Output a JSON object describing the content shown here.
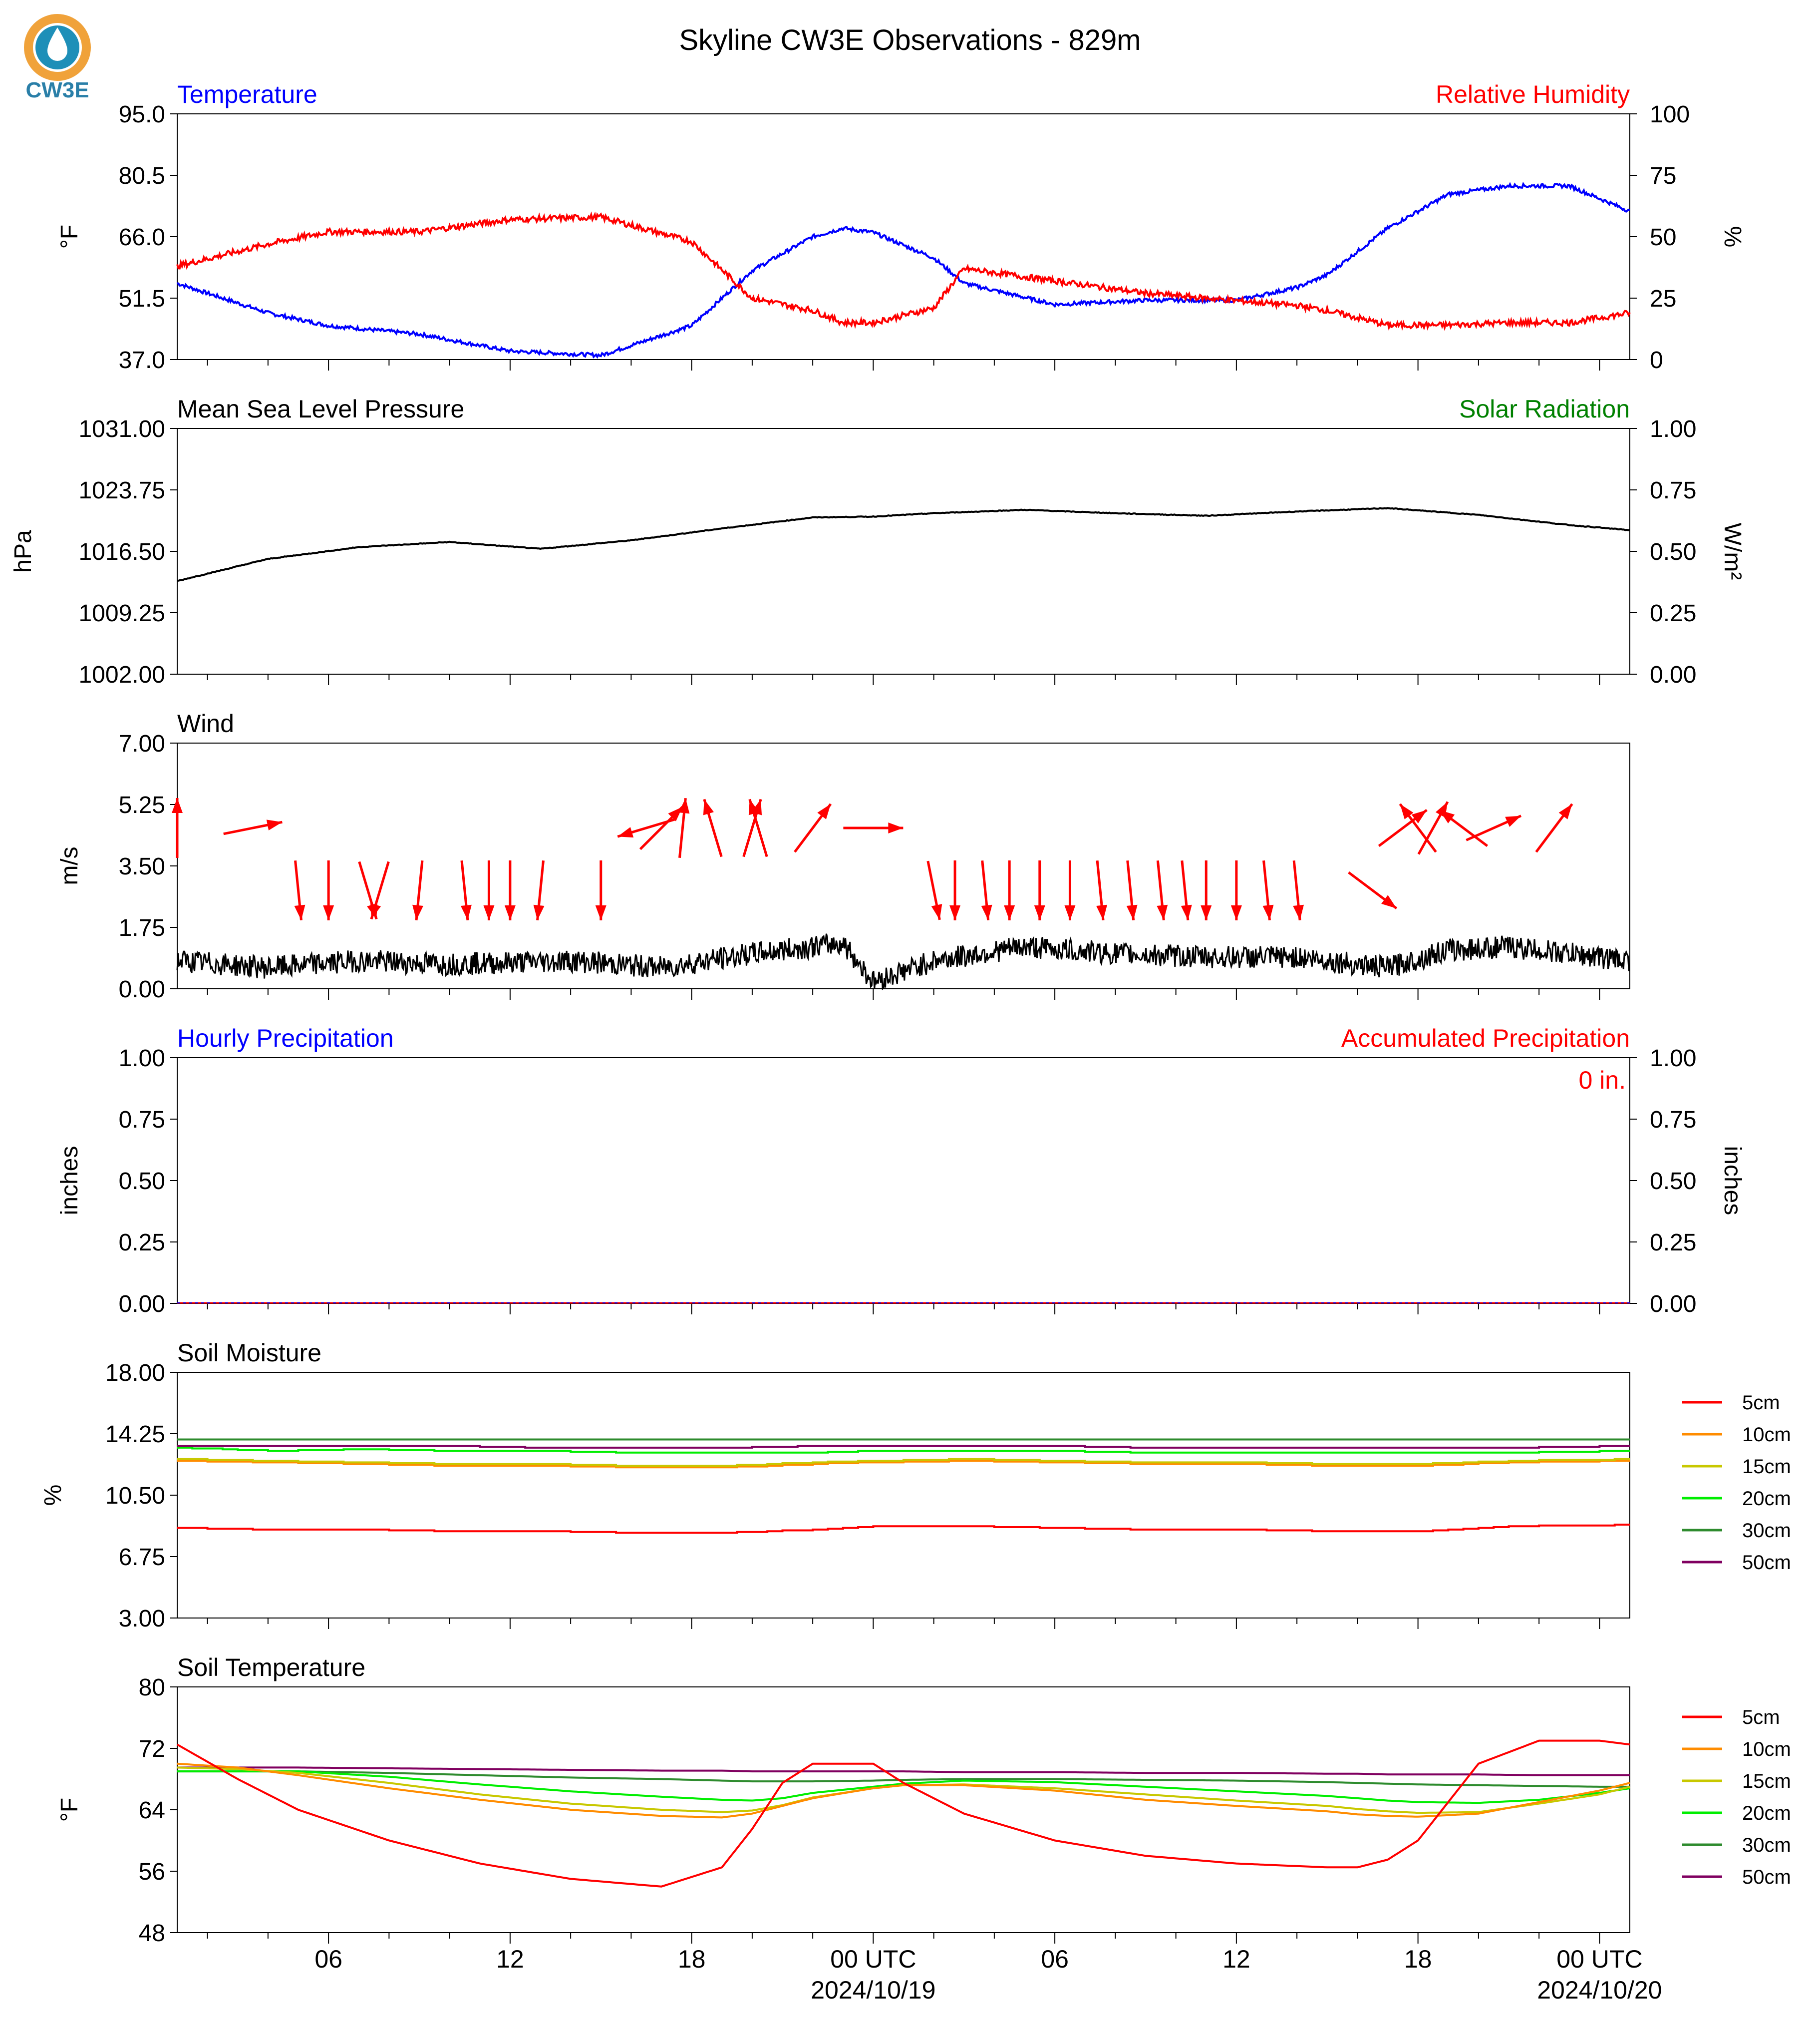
{
  "title": "Skyline CW3E Observations - 829m",
  "logo": {
    "text": "CW3E",
    "colors": {
      "ring": "#f0a23a",
      "drop": "#1e8fb8",
      "text": "#2a7fa8"
    }
  },
  "colors": {
    "blue": "#0000ff",
    "red": "#ff0000",
    "green": "#008000",
    "black": "#000000"
  },
  "x_axis": {
    "ticks": [
      "06",
      "12",
      "18",
      "00 UTC",
      "06",
      "12",
      "18",
      "00 UTC"
    ],
    "dates": [
      "2024/10/19",
      "2024/10/20"
    ],
    "range_hours": [
      -23,
      25
    ],
    "major_hours": [
      -18,
      -12,
      -6,
      0,
      6,
      12,
      18,
      24
    ]
  },
  "panels": [
    {
      "id": "temp_rh",
      "title_left": "Temperature",
      "title_left_color": "#0000ff",
      "title_right": "Relative Humidity",
      "title_right_color": "#ff0000",
      "ylabel_left": "°F",
      "ylabel_right": "%",
      "yticks_left": [
        "95.0",
        "80.5",
        "66.0",
        "51.5",
        "37.0"
      ],
      "yticks_right": [
        "100",
        "75",
        "50",
        "25",
        "0"
      ]
    },
    {
      "id": "pressure",
      "title_left": "Mean Sea Level Pressure",
      "title_left_color": "#000000",
      "title_right": "Solar Radiation",
      "title_right_color": "#008000",
      "ylabel_left": "hPa",
      "ylabel_right": "W/m²",
      "yticks_left": [
        "1031.00",
        "1023.75",
        "1016.50",
        "1009.25",
        "1002.00"
      ],
      "yticks_right": [
        "1.00",
        "0.75",
        "0.50",
        "0.25",
        "0.00"
      ]
    },
    {
      "id": "wind",
      "title_left": "Wind",
      "title_left_color": "#000000",
      "title_right": "",
      "title_right_color": "#000000",
      "ylabel_left": "m/s",
      "ylabel_right": "",
      "yticks_left": [
        "7.00",
        "5.25",
        "3.50",
        "1.75",
        "0.00"
      ],
      "yticks_right": []
    },
    {
      "id": "precip",
      "title_left": "Hourly Precipitation",
      "title_left_color": "#0000ff",
      "title_right": "Accumulated Precipitation",
      "title_right_color": "#ff0000",
      "ylabel_left": "inches",
      "ylabel_right": "inches",
      "yticks_left": [
        "1.00",
        "0.75",
        "0.50",
        "0.25",
        "0.00"
      ],
      "yticks_right": [
        "1.00",
        "0.75",
        "0.50",
        "0.25",
        "0.00"
      ],
      "annotation": "0 in."
    },
    {
      "id": "soil_moisture",
      "title_left": "Soil Moisture",
      "title_left_color": "#000000",
      "title_right": "",
      "title_right_color": "#000000",
      "ylabel_left": "%",
      "ylabel_right": "",
      "yticks_left": [
        "18.00",
        "14.25",
        "10.50",
        "6.75",
        "3.00"
      ],
      "yticks_right": [],
      "legend": [
        {
          "name": "5cm",
          "color": "#ff0000"
        },
        {
          "name": "10cm",
          "color": "#ff8c00"
        },
        {
          "name": "15cm",
          "color": "#c8c800"
        },
        {
          "name": "20cm",
          "color": "#00ee00"
        },
        {
          "name": "30cm",
          "color": "#2e8b2e"
        },
        {
          "name": "50cm",
          "color": "#800060"
        }
      ]
    },
    {
      "id": "soil_temp",
      "title_left": "Soil Temperature",
      "title_left_color": "#000000",
      "title_right": "",
      "title_right_color": "#000000",
      "ylabel_left": "°F",
      "ylabel_right": "",
      "yticks_left": [
        "80",
        "72",
        "64",
        "56",
        "48"
      ],
      "yticks_right": [],
      "legend": [
        {
          "name": "5cm",
          "color": "#ff0000"
        },
        {
          "name": "10cm",
          "color": "#ff8c00"
        },
        {
          "name": "15cm",
          "color": "#c8c800"
        },
        {
          "name": "20cm",
          "color": "#00ee00"
        },
        {
          "name": "30cm",
          "color": "#2e8b2e"
        },
        {
          "name": "50cm",
          "color": "#800060"
        }
      ]
    }
  ],
  "chart_data": [
    {
      "type": "line",
      "title": "Temperature / Relative Humidity",
      "x": [
        -23,
        -20,
        -18,
        -15,
        -12,
        -9,
        -6,
        -4,
        -2,
        -1,
        0,
        2,
        3,
        6,
        9,
        12,
        14,
        15,
        17,
        19,
        21,
        23,
        25
      ],
      "series": [
        {
          "name": "Temperature",
          "axis": "left",
          "color": "#0000ff",
          "values": [
            55,
            48,
            45,
            43,
            39,
            38,
            45,
            58,
            66,
            68,
            67,
            61,
            55,
            50,
            51,
            51,
            54,
            57,
            68,
            76,
            78,
            78,
            72
          ]
        },
        {
          "name": "Relative Humidity",
          "axis": "right",
          "color": "#ff0000",
          "values": [
            38,
            47,
            52,
            52,
            57,
            58,
            48,
            25,
            20,
            15,
            15,
            21,
            37,
            32,
            27,
            24,
            22,
            20,
            14,
            14,
            15,
            15,
            19
          ]
        }
      ],
      "ylim_left": [
        37,
        95
      ],
      "ylim_right": [
        0,
        100
      ]
    },
    {
      "type": "line",
      "title": "Mean Sea Level Pressure",
      "x": [
        -23,
        -20,
        -17,
        -14,
        -11,
        -8,
        -5,
        -2,
        0,
        2,
        5,
        8,
        11,
        14,
        17,
        20,
        23,
        25
      ],
      "series": [
        {
          "name": "Mean Sea Level Pressure",
          "color": "#000000",
          "values": [
            1013.0,
            1015.6,
            1017.0,
            1017.6,
            1016.8,
            1017.8,
            1019.2,
            1020.5,
            1020.6,
            1021.0,
            1021.4,
            1021.0,
            1020.7,
            1021.2,
            1021.6,
            1020.8,
            1019.6,
            1019.0
          ]
        }
      ],
      "ylim": [
        1002,
        1031
      ]
    },
    {
      "type": "line",
      "title": "Wind",
      "x": [
        -23,
        -20,
        -17,
        -14,
        -10,
        -7,
        -4,
        -2,
        -1,
        0,
        2,
        5,
        8,
        11,
        14,
        17,
        19,
        21,
        23,
        25
      ],
      "series": [
        {
          "name": "Wind speed",
          "color": "#000000",
          "values": [
            0.8,
            0.6,
            0.8,
            0.7,
            0.8,
            0.6,
            1.0,
            1.2,
            1.3,
            0.2,
            0.8,
            1.2,
            1.0,
            0.9,
            0.9,
            0.6,
            1.1,
            1.2,
            1.0,
            0.8
          ]
        }
      ],
      "ylim": [
        0,
        7
      ],
      "arrows": [
        {
          "x": -23,
          "u": 0.0,
          "v": 1.0
        },
        {
          "x": -20.5,
          "u": 1.0,
          "v": 0.2
        },
        {
          "x": -19,
          "u": 0.1,
          "v": -1.0
        },
        {
          "x": -18,
          "u": 0.0,
          "v": -1.0
        },
        {
          "x": -16.7,
          "u": 0.3,
          "v": -1.0
        },
        {
          "x": -16.3,
          "u": -0.3,
          "v": -1.0
        },
        {
          "x": -15,
          "u": -0.1,
          "v": -1.0
        },
        {
          "x": -13.5,
          "u": 0.1,
          "v": -1.0
        },
        {
          "x": -12.7,
          "u": 0.0,
          "v": -1.0
        },
        {
          "x": -12,
          "u": 0.0,
          "v": -1.0
        },
        {
          "x": -11,
          "u": -0.1,
          "v": -1.0
        },
        {
          "x": -9,
          "u": 0.0,
          "v": -1.0
        },
        {
          "x": -7.5,
          "u": -1.0,
          "v": -0.3
        },
        {
          "x": -7,
          "u": 0.7,
          "v": 0.7
        },
        {
          "x": -6.3,
          "u": 0.1,
          "v": 1.0
        },
        {
          "x": -5.3,
          "u": -0.3,
          "v": 1.0
        },
        {
          "x": -4,
          "u": 0.3,
          "v": 1.0
        },
        {
          "x": -3.8,
          "u": -0.3,
          "v": 1.0
        },
        {
          "x": -2,
          "u": 0.6,
          "v": 0.8
        },
        {
          "x": 0,
          "u": 1.0,
          "v": 0.0
        },
        {
          "x": 2,
          "u": 0.2,
          "v": -1.0
        },
        {
          "x": 2.7,
          "u": 0.0,
          "v": -1.0
        },
        {
          "x": 3.7,
          "u": 0.1,
          "v": -1.0
        },
        {
          "x": 4.5,
          "u": 0.0,
          "v": -1.0
        },
        {
          "x": 5.5,
          "u": 0.0,
          "v": -1.0
        },
        {
          "x": 6.5,
          "u": 0.0,
          "v": -1.0
        },
        {
          "x": 7.5,
          "u": 0.1,
          "v": -1.0
        },
        {
          "x": 8.5,
          "u": 0.1,
          "v": -1.0
        },
        {
          "x": 9.5,
          "u": 0.1,
          "v": -1.0
        },
        {
          "x": 10.3,
          "u": 0.1,
          "v": -1.0
        },
        {
          "x": 11,
          "u": 0.0,
          "v": -1.0
        },
        {
          "x": 12,
          "u": 0.0,
          "v": -1.0
        },
        {
          "x": 13,
          "u": 0.1,
          "v": -1.0
        },
        {
          "x": 14,
          "u": 0.1,
          "v": -1.0
        },
        {
          "x": 16.5,
          "u": 0.8,
          "v": -0.6
        },
        {
          "x": 17.5,
          "u": 0.8,
          "v": 0.6
        },
        {
          "x": 18,
          "u": -0.6,
          "v": 0.8
        },
        {
          "x": 18.5,
          "u": 0.5,
          "v": 0.9
        },
        {
          "x": 19.5,
          "u": -0.8,
          "v": 0.6
        },
        {
          "x": 20.5,
          "u": 0.9,
          "v": 0.4
        },
        {
          "x": 22.5,
          "u": 0.6,
          "v": 0.8
        }
      ]
    },
    {
      "type": "line",
      "title": "Precipitation",
      "x": [
        -23,
        25
      ],
      "series": [
        {
          "name": "Hourly Precipitation",
          "axis": "left",
          "color": "#0000ff",
          "values": [
            0,
            0
          ]
        },
        {
          "name": "Accumulated Precipitation",
          "axis": "right",
          "color": "#ff0000",
          "values": [
            0,
            0
          ]
        }
      ],
      "ylim": [
        0,
        1
      ]
    },
    {
      "type": "line",
      "title": "Soil Moisture",
      "x": [
        -23,
        -20,
        -17,
        -14,
        -11,
        -8,
        -5,
        -2,
        0,
        3,
        6,
        9,
        12,
        15,
        18,
        21,
        25
      ],
      "series": [
        {
          "name": "5cm",
          "color": "#ff0000",
          "values": [
            8.5,
            8.4,
            8.4,
            8.3,
            8.3,
            8.2,
            8.2,
            8.4,
            8.6,
            8.6,
            8.5,
            8.4,
            8.4,
            8.3,
            8.3,
            8.6,
            8.7
          ]
        },
        {
          "name": "10cm",
          "color": "#ff8c00",
          "values": [
            12.6,
            12.5,
            12.4,
            12.3,
            12.3,
            12.2,
            12.2,
            12.4,
            12.5,
            12.6,
            12.5,
            12.4,
            12.4,
            12.3,
            12.3,
            12.5,
            12.6
          ]
        },
        {
          "name": "15cm",
          "color": "#c8c800",
          "values": [
            12.7,
            12.6,
            12.5,
            12.4,
            12.4,
            12.3,
            12.3,
            12.5,
            12.6,
            12.7,
            12.6,
            12.5,
            12.5,
            12.4,
            12.4,
            12.6,
            12.7
          ]
        },
        {
          "name": "20cm",
          "color": "#00ee00",
          "values": [
            13.4,
            13.2,
            13.3,
            13.2,
            13.2,
            13.1,
            13.1,
            13.1,
            13.2,
            13.2,
            13.2,
            13.1,
            13.1,
            13.1,
            13.1,
            13.1,
            13.2
          ]
        },
        {
          "name": "30cm",
          "color": "#2e8b2e",
          "values": [
            13.9,
            13.9,
            13.9,
            13.9,
            13.9,
            13.9,
            13.9,
            13.9,
            13.9,
            13.9,
            13.9,
            13.9,
            13.9,
            13.9,
            13.9,
            13.9,
            13.9
          ]
        },
        {
          "name": "50cm",
          "color": "#800060",
          "values": [
            13.5,
            13.5,
            13.5,
            13.5,
            13.4,
            13.4,
            13.4,
            13.5,
            13.5,
            13.5,
            13.5,
            13.4,
            13.4,
            13.4,
            13.4,
            13.4,
            13.5
          ]
        }
      ],
      "ylim": [
        3,
        18
      ]
    },
    {
      "type": "line",
      "title": "Soil Temperature",
      "x": [
        -23,
        -21,
        -19,
        -16,
        -13,
        -10,
        -7,
        -5,
        -4,
        -3,
        -2,
        0,
        1,
        3,
        6,
        9,
        12,
        15,
        16,
        17,
        18,
        20,
        22,
        24,
        25
      ],
      "series": [
        {
          "name": "5cm",
          "color": "#ff0000",
          "values": [
            72.5,
            68.0,
            64.0,
            60.0,
            57.0,
            55.0,
            54.0,
            56.5,
            61.5,
            67.5,
            70.0,
            70.0,
            67.5,
            63.5,
            60.0,
            58.0,
            57.0,
            56.5,
            56.5,
            57.5,
            60.0,
            70.0,
            73.0,
            73.0,
            72.5
          ]
        },
        {
          "name": "10cm",
          "color": "#ff8c00",
          "values": [
            70.0,
            69.5,
            68.5,
            66.8,
            65.3,
            64.0,
            63.2,
            63.0,
            63.5,
            64.5,
            65.5,
            66.8,
            67.2,
            67.2,
            66.5,
            65.3,
            64.5,
            63.8,
            63.4,
            63.2,
            63.1,
            63.5,
            65.0,
            66.5,
            67.5
          ]
        },
        {
          "name": "15cm",
          "color": "#c8c800",
          "values": [
            69.5,
            69.3,
            68.8,
            67.5,
            66.0,
            64.8,
            64.0,
            63.7,
            63.9,
            64.6,
            65.6,
            66.8,
            67.2,
            67.3,
            66.8,
            66.0,
            65.2,
            64.5,
            64.1,
            63.8,
            63.6,
            63.7,
            64.8,
            66.0,
            67.0
          ]
        },
        {
          "name": "20cm",
          "color": "#00ee00",
          "values": [
            69.0,
            69.0,
            69.0,
            68.3,
            67.3,
            66.4,
            65.7,
            65.3,
            65.2,
            65.5,
            66.2,
            67.0,
            67.4,
            67.8,
            67.6,
            67.0,
            66.4,
            65.8,
            65.5,
            65.2,
            65.0,
            64.9,
            65.3,
            66.2,
            66.8
          ]
        },
        {
          "name": "30cm",
          "color": "#2e8b2e",
          "values": [
            69.0,
            69.0,
            69.0,
            68.8,
            68.5,
            68.2,
            68.0,
            67.8,
            67.7,
            67.7,
            67.7,
            67.8,
            67.9,
            68.0,
            68.0,
            67.9,
            67.8,
            67.6,
            67.5,
            67.4,
            67.3,
            67.2,
            67.1,
            67.0,
            67.0
          ]
        },
        {
          "name": "50cm",
          "color": "#800060",
          "values": [
            69.5,
            69.5,
            69.5,
            69.4,
            69.3,
            69.2,
            69.1,
            69.1,
            69.0,
            69.0,
            69.0,
            69.0,
            69.0,
            68.9,
            68.9,
            68.8,
            68.8,
            68.7,
            68.7,
            68.6,
            68.6,
            68.6,
            68.5,
            68.5,
            68.5
          ]
        }
      ],
      "ylim": [
        48,
        80
      ]
    }
  ]
}
